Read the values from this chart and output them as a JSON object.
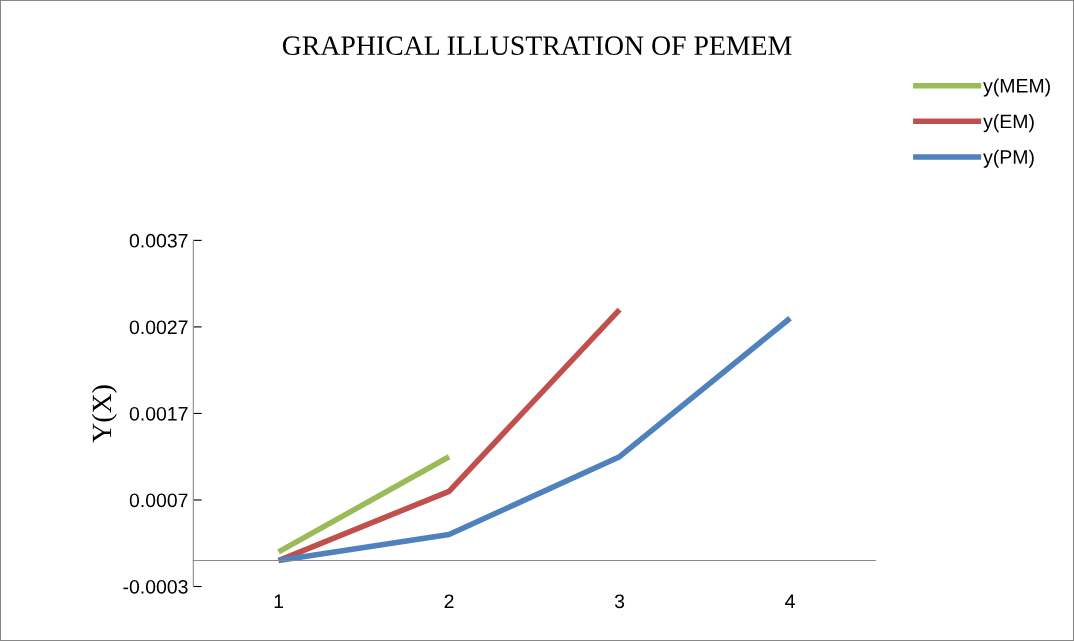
{
  "chart_data": {
    "type": "line",
    "title": "GRAPHICAL ILLUSTRATION OF PEMEM",
    "ylabel": "Y(X)",
    "categories": [
      "1",
      "2",
      "3",
      "4"
    ],
    "series": [
      {
        "name": "y(MEM)",
        "color": "#9bbb59",
        "values": [
          0.0001,
          0.0012,
          null,
          null
        ]
      },
      {
        "name": "y(EM)",
        "color": "#c0504d",
        "values": [
          0.0,
          0.0008,
          0.0029,
          null
        ]
      },
      {
        "name": "y(PM)",
        "color": "#4f81bd",
        "values": [
          0.0,
          0.0003,
          0.0012,
          0.0028
        ]
      }
    ],
    "ylim": [
      -0.0003,
      0.0037
    ],
    "yticks": [
      -0.0003,
      0.0007,
      0.0017,
      0.0027,
      0.0037
    ],
    "grid": false,
    "legend": "top right",
    "marker": "none",
    "line_style": "solid"
  }
}
